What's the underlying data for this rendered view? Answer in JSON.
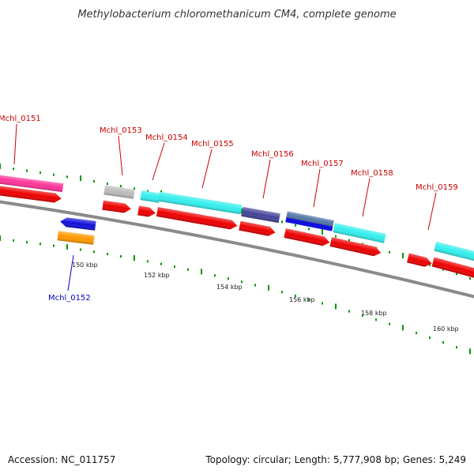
{
  "title": "Methylobacterium chloromethanicum CM4, complete genome",
  "footer": {
    "accession": "Accession: NC_011757",
    "stats": "Topology: circular; Length: 5,777,908 bp; Genes: 5,249"
  },
  "colors": {
    "label_plus": "#cc0000",
    "label_minus": "#0000cc",
    "backbone": "#888888",
    "dots": "#009900",
    "cds": "#ee0000",
    "magenta": "#ff3399",
    "cyan": "#33eeee",
    "grey": "#bbbbbb",
    "navy": "#444499",
    "blue": "#1111dd",
    "orange": "#ff9900",
    "steel": "#5577aa"
  },
  "genes": [
    {
      "id": "Mchl_0151",
      "label": "Mchl_0151",
      "strand": "+"
    },
    {
      "id": "Mchl_0152",
      "label": "Mchl_0152",
      "strand": "-"
    },
    {
      "id": "Mchl_0153",
      "label": "Mchl_0153",
      "strand": "+"
    },
    {
      "id": "Mchl_0154",
      "label": "Mchl_0154",
      "strand": "+"
    },
    {
      "id": "Mchl_0155",
      "label": "Mchl_0155",
      "strand": "+"
    },
    {
      "id": "Mchl_0156",
      "label": "Mchl_0156",
      "strand": "+"
    },
    {
      "id": "Mchl_0157",
      "label": "Mchl_0157",
      "strand": "+"
    },
    {
      "id": "Mchl_0158",
      "label": "Mchl_0158",
      "strand": "+"
    },
    {
      "id": "Mchl_0159",
      "label": "Mchl_0159",
      "strand": "+"
    }
  ],
  "ticks": [
    "150 kbp",
    "152 kbp",
    "154 kbp",
    "156 kbp",
    "158 kbp",
    "160 kbp"
  ]
}
